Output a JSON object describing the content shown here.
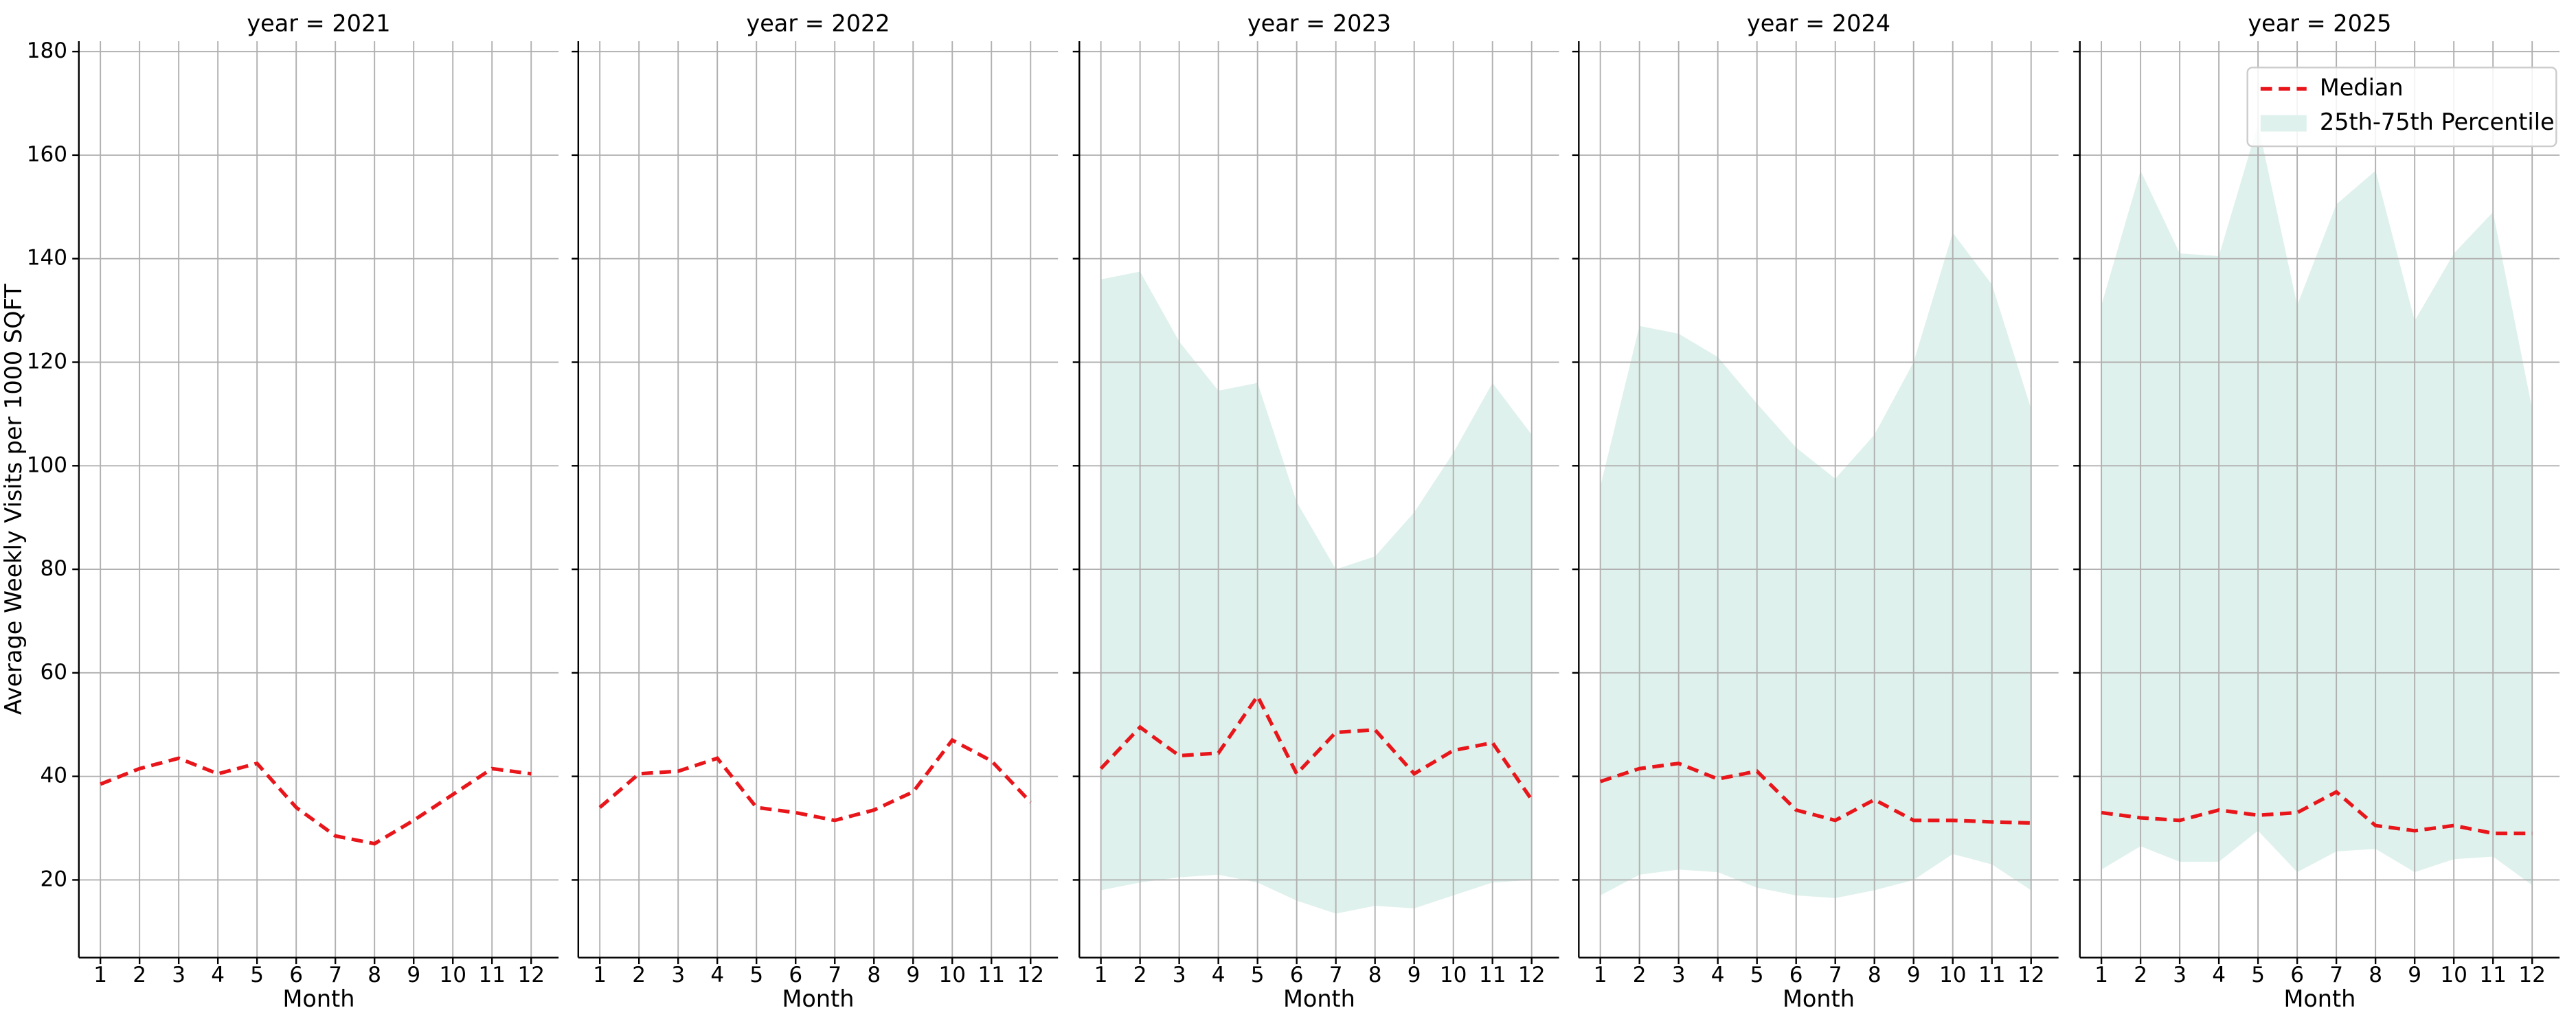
{
  "chart_data": [
    {
      "type": "line",
      "title": "year = 2021",
      "xlabel": "Month",
      "ylabel": "Average Weekly Visits per 1000 SQFT",
      "x": [
        1,
        2,
        3,
        4,
        5,
        6,
        7,
        8,
        9,
        10,
        11,
        12
      ],
      "xlim": [
        0.45,
        12.7
      ],
      "xticks": [
        1,
        2,
        3,
        4,
        5,
        6,
        7,
        8,
        9,
        10,
        11,
        12
      ],
      "ylim": [
        5,
        182
      ],
      "yticks": [
        20,
        40,
        60,
        80,
        100,
        120,
        140,
        160,
        180
      ],
      "ytick_labels": true,
      "grid": true,
      "series": [
        {
          "color": "#e8161b",
          "dashed": true,
          "values": [
            38.5,
            41.5,
            43.5,
            40.5,
            42.5,
            34,
            28.5,
            27,
            31.5,
            36.5,
            41.5,
            40.5
          ]
        }
      ]
    },
    {
      "type": "line",
      "title": "year = 2022",
      "xlabel": "Month",
      "x": [
        1,
        2,
        3,
        4,
        5,
        6,
        7,
        8,
        9,
        10,
        11,
        12
      ],
      "xlim": [
        0.45,
        12.7
      ],
      "xticks": [
        1,
        2,
        3,
        4,
        5,
        6,
        7,
        8,
        9,
        10,
        11,
        12
      ],
      "ylim": [
        5,
        182
      ],
      "yticks": [
        20,
        40,
        60,
        80,
        100,
        120,
        140,
        160,
        180
      ],
      "ytick_labels": false,
      "grid": true,
      "series": [
        {
          "color": "#e8161b",
          "dashed": true,
          "values": [
            34,
            40.5,
            41,
            43.5,
            34,
            33,
            31.5,
            33.5,
            37,
            47,
            43,
            35
          ]
        }
      ]
    },
    {
      "type": "line",
      "title": "year = 2023",
      "xlabel": "Month",
      "x": [
        1,
        2,
        3,
        4,
        5,
        6,
        7,
        8,
        9,
        10,
        11,
        12
      ],
      "xlim": [
        0.45,
        12.7
      ],
      "xticks": [
        1,
        2,
        3,
        4,
        5,
        6,
        7,
        8,
        9,
        10,
        11,
        12
      ],
      "ylim": [
        5,
        182
      ],
      "yticks": [
        20,
        40,
        60,
        80,
        100,
        120,
        140,
        160,
        180
      ],
      "ytick_labels": false,
      "grid": true,
      "series": [
        {
          "color": "#e8161b",
          "dashed": true,
          "values": [
            41.5,
            49.5,
            44,
            44.5,
            55.5,
            40.5,
            48.5,
            49,
            40.5,
            45,
            46.5,
            35.5
          ]
        },
        {
          "color": "#dff1ec",
          "band": true,
          "upper": [
            136,
            137.5,
            124,
            114.5,
            116,
            93,
            80,
            82.5,
            91,
            102.5,
            116,
            106
          ],
          "lower": [
            18,
            19.5,
            20.5,
            21,
            19.5,
            16,
            13.5,
            15,
            14.5,
            17,
            19.5,
            20
          ]
        }
      ]
    },
    {
      "type": "line",
      "title": "year = 2024",
      "xlabel": "Month",
      "x": [
        1,
        2,
        3,
        4,
        5,
        6,
        7,
        8,
        9,
        10,
        11,
        12
      ],
      "xlim": [
        0.45,
        12.7
      ],
      "xticks": [
        1,
        2,
        3,
        4,
        5,
        6,
        7,
        8,
        9,
        10,
        11,
        12
      ],
      "ylim": [
        5,
        182
      ],
      "yticks": [
        20,
        40,
        60,
        80,
        100,
        120,
        140,
        160,
        180
      ],
      "ytick_labels": false,
      "grid": true,
      "series": [
        {
          "color": "#e8161b",
          "dashed": true,
          "values": [
            39,
            41.5,
            42.5,
            39.5,
            41,
            33.5,
            31.5,
            35.5,
            31.5,
            31.5,
            31.2,
            31
          ]
        },
        {
          "color": "#dff1ec",
          "band": true,
          "upper": [
            96,
            127,
            125.5,
            121,
            112,
            103.5,
            97.5,
            106,
            120,
            145,
            135,
            111
          ],
          "lower": [
            17,
            21,
            22,
            21.5,
            18.5,
            17,
            16.5,
            18,
            20,
            25,
            23,
            18
          ]
        }
      ]
    },
    {
      "type": "line",
      "title": "year = 2025",
      "xlabel": "Month",
      "legend": "upper right",
      "x": [
        1,
        2,
        3,
        4,
        5,
        6,
        7,
        8,
        9,
        10,
        11,
        12
      ],
      "xlim": [
        0.45,
        12.7
      ],
      "xticks": [
        1,
        2,
        3,
        4,
        5,
        6,
        7,
        8,
        9,
        10,
        11,
        12
      ],
      "ylim": [
        5,
        182
      ],
      "yticks": [
        20,
        40,
        60,
        80,
        100,
        120,
        140,
        160,
        180
      ],
      "ytick_labels": false,
      "grid": true,
      "series": [
        {
          "name": "Median",
          "color": "#e8161b",
          "dashed": true,
          "values": [
            33,
            32,
            31.5,
            33.5,
            32.5,
            33,
            37,
            30.5,
            29.5,
            30.5,
            29,
            29
          ]
        },
        {
          "name": "25th-75th Percentile",
          "color": "#dff1ec",
          "band": true,
          "upper": [
            131,
            157,
            141,
            140.5,
            166,
            131,
            150.5,
            157,
            128,
            141,
            149,
            111
          ],
          "lower": [
            22,
            26.5,
            23.5,
            23.5,
            29.5,
            21.5,
            25.5,
            26,
            21.5,
            24,
            24.5,
            19
          ]
        }
      ]
    }
  ]
}
